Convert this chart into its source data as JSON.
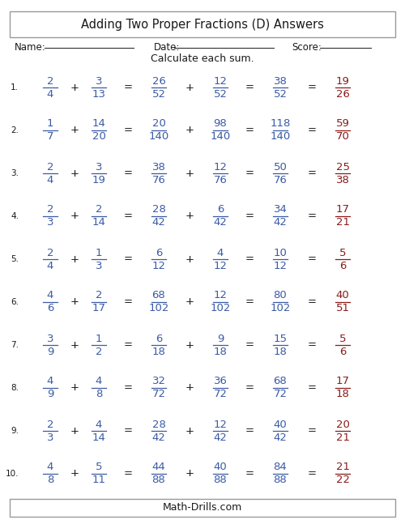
{
  "title": "Adding Two Proper Fractions (D) Answers",
  "footer": "Math-Drills.com",
  "name_label": "Name:",
  "date_label": "Date:",
  "score_label": "Score:",
  "instruction": "Calculate each sum.",
  "blue_color": "#3B5BA5",
  "red_color": "#8B1A1A",
  "black_color": "#1a1a1a",
  "bg_color": "#FFFFFF",
  "problems": [
    {
      "num": "1.",
      "f1n": "2",
      "f1d": "4",
      "f2n": "3",
      "f2d": "13",
      "e1n": "26",
      "e1d": "52",
      "e2n": "12",
      "e2d": "52",
      "sn": "38",
      "sd": "52",
      "an": "19",
      "ad": "26"
    },
    {
      "num": "2.",
      "f1n": "1",
      "f1d": "7",
      "f2n": "14",
      "f2d": "20",
      "e1n": "20",
      "e1d": "140",
      "e2n": "98",
      "e2d": "140",
      "sn": "118",
      "sd": "140",
      "an": "59",
      "ad": "70"
    },
    {
      "num": "3.",
      "f1n": "2",
      "f1d": "4",
      "f2n": "3",
      "f2d": "19",
      "e1n": "38",
      "e1d": "76",
      "e2n": "12",
      "e2d": "76",
      "sn": "50",
      "sd": "76",
      "an": "25",
      "ad": "38"
    },
    {
      "num": "4.",
      "f1n": "2",
      "f1d": "3",
      "f2n": "2",
      "f2d": "14",
      "e1n": "28",
      "e1d": "42",
      "e2n": "6",
      "e2d": "42",
      "sn": "34",
      "sd": "42",
      "an": "17",
      "ad": "21"
    },
    {
      "num": "5.",
      "f1n": "2",
      "f1d": "4",
      "f2n": "1",
      "f2d": "3",
      "e1n": "6",
      "e1d": "12",
      "e2n": "4",
      "e2d": "12",
      "sn": "10",
      "sd": "12",
      "an": "5",
      "ad": "6"
    },
    {
      "num": "6.",
      "f1n": "4",
      "f1d": "6",
      "f2n": "2",
      "f2d": "17",
      "e1n": "68",
      "e1d": "102",
      "e2n": "12",
      "e2d": "102",
      "sn": "80",
      "sd": "102",
      "an": "40",
      "ad": "51"
    },
    {
      "num": "7.",
      "f1n": "3",
      "f1d": "9",
      "f2n": "1",
      "f2d": "2",
      "e1n": "6",
      "e1d": "18",
      "e2n": "9",
      "e2d": "18",
      "sn": "15",
      "sd": "18",
      "an": "5",
      "ad": "6"
    },
    {
      "num": "8.",
      "f1n": "4",
      "f1d": "9",
      "f2n": "4",
      "f2d": "8",
      "e1n": "32",
      "e1d": "72",
      "e2n": "36",
      "e2d": "72",
      "sn": "68",
      "sd": "72",
      "an": "17",
      "ad": "18"
    },
    {
      "num": "9.",
      "f1n": "2",
      "f1d": "3",
      "f2n": "4",
      "f2d": "14",
      "e1n": "28",
      "e1d": "42",
      "e2n": "12",
      "e2d": "42",
      "sn": "40",
      "sd": "42",
      "an": "20",
      "ad": "21"
    },
    {
      "num": "10.",
      "f1n": "4",
      "f1d": "8",
      "f2n": "5",
      "f2d": "11",
      "e1n": "44",
      "e1d": "88",
      "e2n": "40",
      "e2d": "88",
      "sn": "84",
      "sd": "88",
      "an": "21",
      "ad": "22"
    }
  ]
}
